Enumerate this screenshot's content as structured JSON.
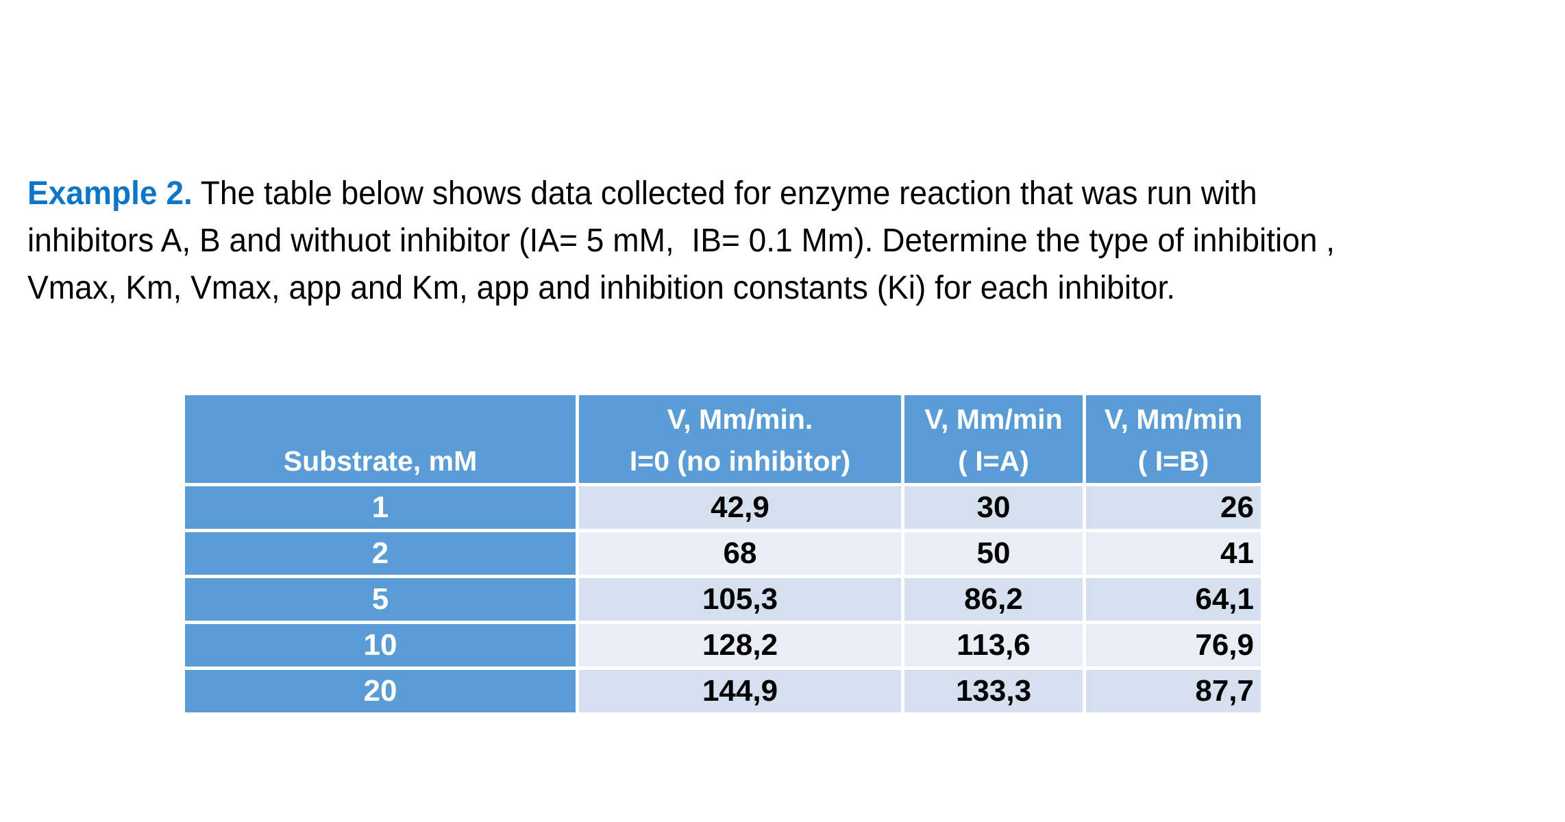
{
  "slide": {
    "paragraph": {
      "lead": "Example 2.",
      "line1_rest": " The table below shows data collected for enzyme reaction that was run with",
      "line2": "inhibitors A, B and withuot inhibitor (IA= 5 mM,  IB= 0.1 Mm). Determine the type of inhibition ,",
      "line3": "Vmax, Km, Vmax, app and Km, app and inhibition constants (Ki) for each inhibitor."
    },
    "table": {
      "substrate_header": "Substrate, mM",
      "value_headers": [
        {
          "line1": "V, Mm/min.",
          "line2": "I=0 (no inhibitor)"
        },
        {
          "line1": "V, Mm/min",
          "line2": "( I=A)"
        },
        {
          "line1": "V, Mm/min",
          "line2": "( I=B)"
        }
      ],
      "rows": [
        {
          "substrate": "1",
          "v_i0": "42,9",
          "v_ia": "30",
          "v_ib": "26"
        },
        {
          "substrate": "2",
          "v_i0": "68",
          "v_ia": "50",
          "v_ib": "41"
        },
        {
          "substrate": "5",
          "v_i0": "105,3",
          "v_ia": "86,2",
          "v_ib": "64,1"
        },
        {
          "substrate": "10",
          "v_i0": "128,2",
          "v_ia": "113,6",
          "v_ib": "76,9"
        },
        {
          "substrate": "20",
          "v_i0": "144,9",
          "v_ia": "133,3",
          "v_ib": "87,7"
        }
      ]
    },
    "colors": {
      "lead_blue": "#0e76c6",
      "table_header_blue": "#5a9cd5",
      "row_band_dark": "#d5e0ee",
      "row_band_light": "#eaedf5",
      "background": "#ffffff",
      "body_text": "#000000",
      "header_text": "#ffffff"
    }
  }
}
